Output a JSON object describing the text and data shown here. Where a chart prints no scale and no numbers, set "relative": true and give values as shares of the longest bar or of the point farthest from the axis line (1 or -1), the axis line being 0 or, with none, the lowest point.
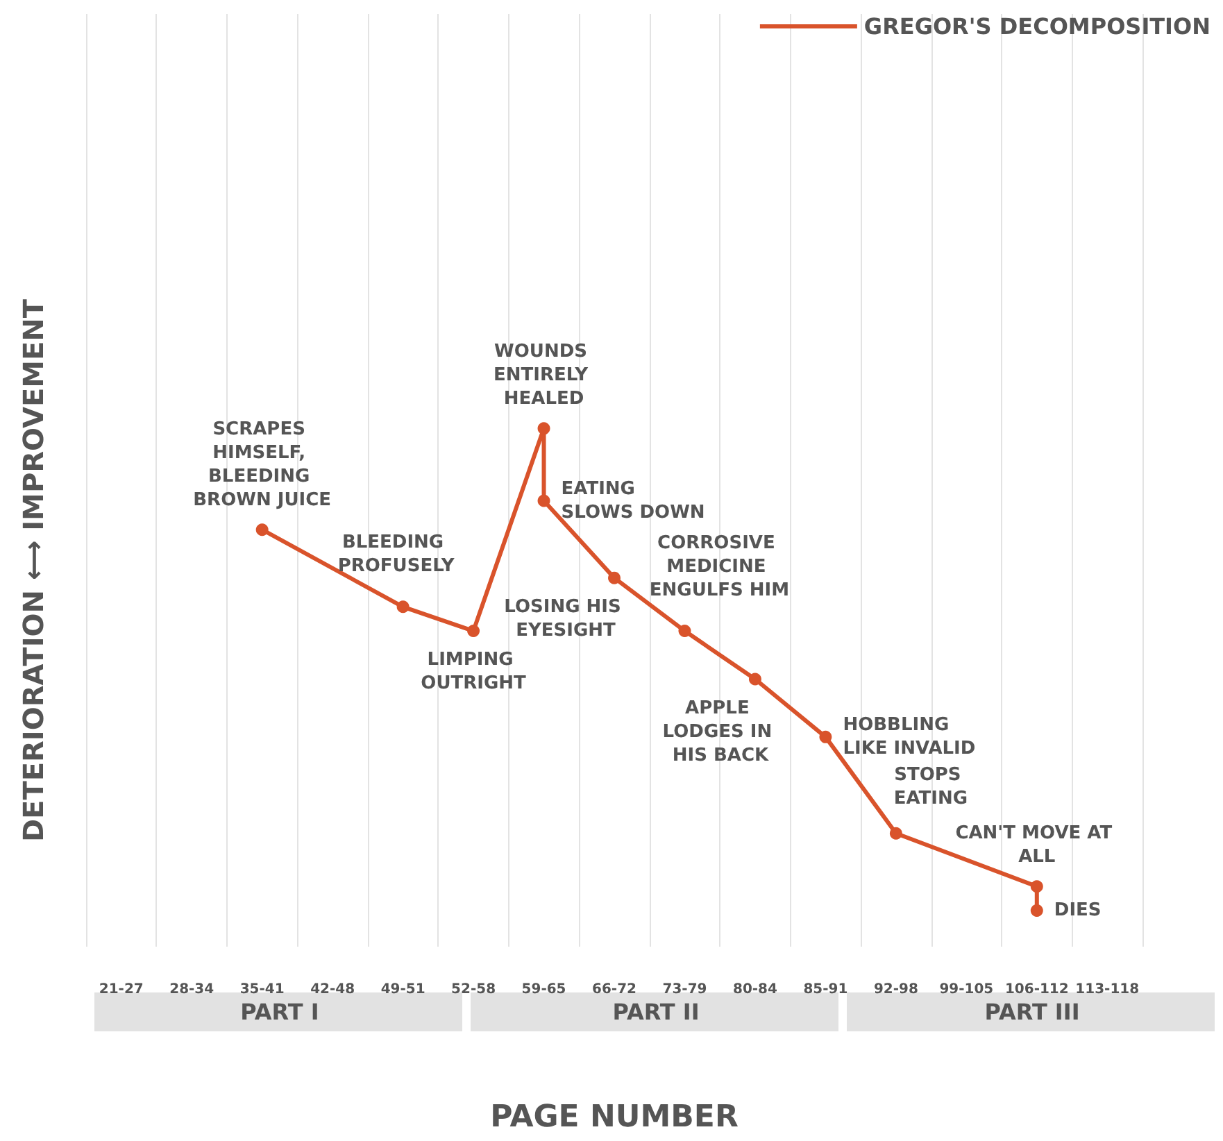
{
  "chart_data": {
    "type": "line",
    "relative": true,
    "xlabel": "PAGE NUMBER",
    "ylabel": "DETERIORATION ⟷ IMPROVEMENT",
    "categories": [
      "21-27",
      "28-34",
      "35-41",
      "42-48",
      "49-51",
      "52-58",
      "59-65",
      "66-72",
      "73-79",
      "80-84",
      "85-91",
      "92-98",
      "99-105",
      "106-112",
      "113-118"
    ],
    "series": [
      {
        "name": "GREGOR'S DECOMPOSITION",
        "color": "#d9532b",
        "x": [
          "35-41",
          "49-51",
          "52-58",
          "59-65",
          "59-65",
          "66-72",
          "73-79",
          "80-84",
          "85-91",
          "92-98",
          "106-112",
          "106-112"
        ],
        "values": [
          0.79,
          0.63,
          0.58,
          1,
          0.85,
          0.69,
          0.58,
          0.48,
          0.36,
          0.16,
          0.05,
          0
        ]
      }
    ],
    "annotations": [
      {
        "text": "SCRAPES HIMSELF, BLEEDING BROWN JUICE",
        "x": "35-41",
        "y": 0.79
      },
      {
        "text": "BLEEDING PROFUSELY",
        "x": "49-51",
        "y": 0.63
      },
      {
        "text": "LIMPING OUTRIGHT",
        "x": "52-58",
        "y": 0.58
      },
      {
        "text": "WOUNDS ENTIRELY HEALED",
        "x": "59-65",
        "y": 1
      },
      {
        "text": "EATING SLOWS DOWN",
        "x": "59-65",
        "y": 0.85
      },
      {
        "text": "LOSING HIS EYESIGHT",
        "x": "66-72",
        "y": 0.69
      },
      {
        "text": "CORROSIVE MEDICINE ENGULFS HIM",
        "x": "73-79",
        "y": 0.58
      },
      {
        "text": "APPLE LODGES IN HIS BACK",
        "x": "80-84",
        "y": 0.48
      },
      {
        "text": "HOBBLING LIKE INVALID",
        "x": "85-91",
        "y": 0.36
      },
      {
        "text": "STOPS EATING",
        "x": "92-98",
        "y": 0.16
      },
      {
        "text": "CAN'T MOVE AT ALL",
        "x": "106-112",
        "y": 0.05
      },
      {
        "text": "DIES",
        "x": "106-112",
        "y": 0
      },
      "PART I",
      "PART II",
      "PART III"
    ],
    "grid": "x",
    "legend": "top right",
    "marker": "circle",
    "line_style": "solid"
  }
}
